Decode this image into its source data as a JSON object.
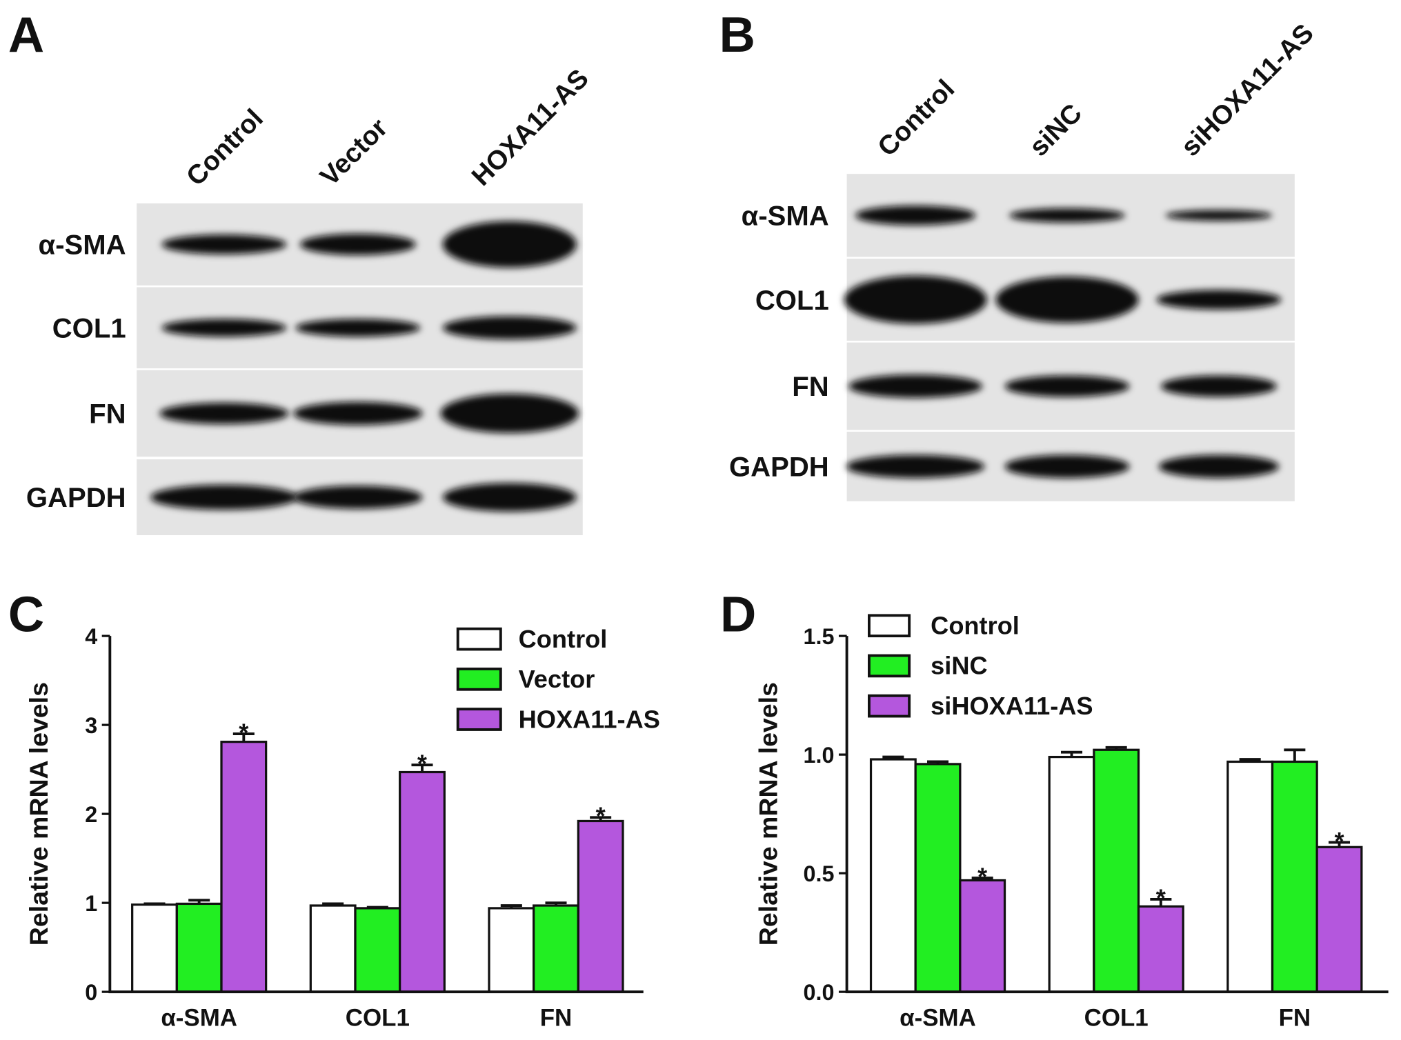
{
  "blots": [
    {
      "panel": "A",
      "lanes": [
        "Control",
        "Vector",
        "HOXA11-AS"
      ],
      "bands": [
        "α-SMA",
        "COL1",
        "FN",
        "GAPDH"
      ]
    },
    {
      "panel": "B",
      "lanes": [
        "Control",
        "siNC",
        "siHOXA11-AS"
      ],
      "bands": [
        "α-SMA",
        "COL1",
        "FN",
        "GAPDH"
      ]
    }
  ],
  "chart_data": [
    {
      "type": "bar",
      "panel": "C",
      "ylabel": "Relative mRNA levels",
      "categories": [
        "α-SMA",
        "COL1",
        "FN"
      ],
      "series": [
        {
          "name": "Control",
          "color": "#ffffff",
          "values": [
            0.98,
            0.97,
            0.94
          ],
          "errors": [
            0.01,
            0.02,
            0.03
          ]
        },
        {
          "name": "Vector",
          "color": "#22ee22",
          "values": [
            0.99,
            0.94,
            0.97
          ],
          "errors": [
            0.04,
            0.01,
            0.03
          ]
        },
        {
          "name": "HOXA11-AS",
          "color": "#b457dd",
          "values": [
            2.81,
            2.47,
            1.92
          ],
          "errors": [
            0.09,
            0.08,
            0.04
          ],
          "markers": [
            "*",
            "*",
            "*"
          ]
        }
      ],
      "ylim": [
        0,
        4
      ],
      "yticks": [
        0,
        1,
        2,
        3,
        4
      ]
    },
    {
      "type": "bar",
      "panel": "D",
      "ylabel": "Relative mRNA levels",
      "categories": [
        "α-SMA",
        "COL1",
        "FN"
      ],
      "series": [
        {
          "name": "Control",
          "color": "#ffffff",
          "values": [
            0.98,
            0.99,
            0.97
          ],
          "errors": [
            0.01,
            0.02,
            0.01
          ]
        },
        {
          "name": "siNC",
          "color": "#22ee22",
          "values": [
            0.96,
            1.02,
            0.97
          ],
          "errors": [
            0.01,
            0.01,
            0.05
          ]
        },
        {
          "name": "siHOXA11-AS",
          "color": "#b457dd",
          "values": [
            0.47,
            0.36,
            0.61
          ],
          "errors": [
            0.01,
            0.03,
            0.02
          ],
          "markers": [
            "*",
            "*",
            "*"
          ]
        }
      ],
      "ylim": [
        0,
        1.5
      ],
      "yticks": [
        {
          "value": 0,
          "label": "0.0"
        },
        0.5,
        {
          "value": 1,
          "label": "1.0"
        },
        1.5
      ]
    }
  ]
}
